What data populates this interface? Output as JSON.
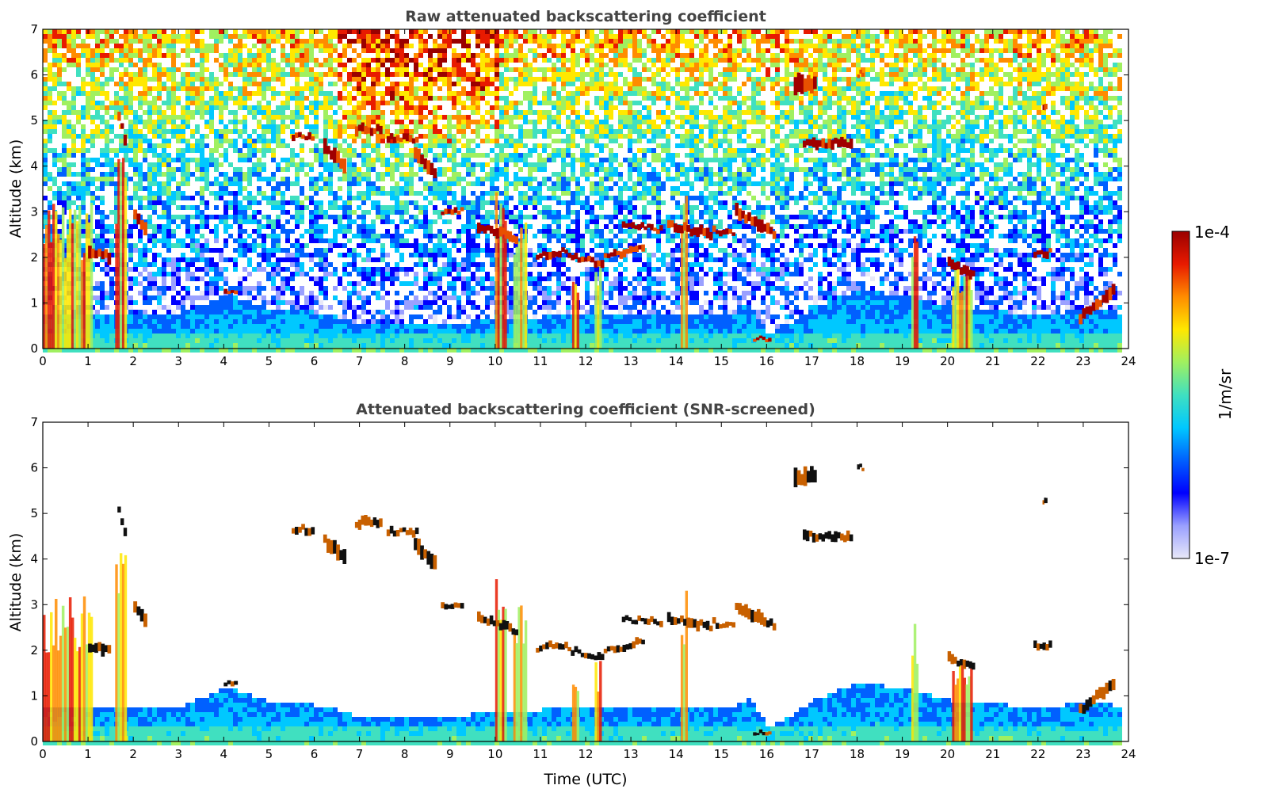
{
  "chart_data": [
    {
      "type": "heatmap",
      "title": "Raw attenuated backscattering coefficient",
      "xlabel": "",
      "ylabel": "Altitude (km)",
      "xlim": [
        0,
        24
      ],
      "ylim": [
        0,
        7
      ],
      "xticks": [
        "0",
        "1",
        "2",
        "3",
        "4",
        "5",
        "6",
        "7",
        "8",
        "9",
        "10",
        "11",
        "12",
        "13",
        "14",
        "15",
        "16",
        "17",
        "18",
        "19",
        "20",
        "21",
        "22",
        "23",
        "24"
      ],
      "yticks": [
        "0",
        "1",
        "2",
        "3",
        "4",
        "5",
        "6",
        "7"
      ],
      "screened": false,
      "data_end_hour": 23.85,
      "boundary_layer": [
        [
          0,
          0.8
        ],
        [
          2,
          0.8
        ],
        [
          3,
          0.8
        ],
        [
          4,
          1.25
        ],
        [
          5,
          0.9
        ],
        [
          6,
          0.85
        ],
        [
          7,
          0.6
        ],
        [
          9,
          0.6
        ],
        [
          10,
          0.7
        ],
        [
          11,
          0.75
        ],
        [
          13,
          0.8
        ],
        [
          15,
          0.75
        ],
        [
          15.6,
          1.0
        ],
        [
          16,
          0.35
        ],
        [
          16.3,
          0.5
        ],
        [
          17,
          0.95
        ],
        [
          18,
          1.35
        ],
        [
          19,
          1.2
        ],
        [
          20,
          0.95
        ],
        [
          21,
          0.9
        ],
        [
          22,
          0.75
        ],
        [
          23,
          0.95
        ],
        [
          23.85,
          0.8
        ]
      ],
      "cloud_layers": [
        {
          "x": [
            1.0,
            1.5
          ],
          "y": [
            2.1,
            2.0
          ],
          "thickness": 0.25
        },
        {
          "x": [
            1.65,
            1.85
          ],
          "y": [
            5.1,
            4.3
          ],
          "thickness": 0.2
        },
        {
          "x": [
            2.0,
            2.3
          ],
          "y": [
            2.9,
            2.6
          ],
          "thickness": 0.3
        },
        {
          "x": [
            4.0,
            4.3
          ],
          "y": [
            1.25,
            1.25
          ],
          "thickness": 0.1
        },
        {
          "x": [
            5.5,
            6.0
          ],
          "y": [
            4.65,
            4.65
          ],
          "thickness": 0.15
        },
        {
          "x": [
            6.2,
            6.7
          ],
          "y": [
            4.4,
            4.0
          ],
          "thickness": 0.3
        },
        {
          "x": [
            6.9,
            7.5
          ],
          "y": [
            4.8,
            4.8
          ],
          "thickness": 0.2
        },
        {
          "x": [
            7.6,
            8.3
          ],
          "y": [
            4.6,
            4.6
          ],
          "thickness": 0.15
        },
        {
          "x": [
            8.2,
            8.7
          ],
          "y": [
            4.3,
            3.8
          ],
          "thickness": 0.3
        },
        {
          "x": [
            8.8,
            9.3
          ],
          "y": [
            3.0,
            3.0
          ],
          "thickness": 0.12
        },
        {
          "x": [
            9.6,
            10.5
          ],
          "y": [
            2.7,
            2.4
          ],
          "thickness": 0.2
        },
        {
          "x": [
            10.9,
            11.6
          ],
          "y": [
            2.05,
            2.15
          ],
          "thickness": 0.15
        },
        {
          "x": [
            11.6,
            12.4
          ],
          "y": [
            2.0,
            1.85
          ],
          "thickness": 0.15
        },
        {
          "x": [
            12.4,
            13.3
          ],
          "y": [
            2.0,
            2.2
          ],
          "thickness": 0.15
        },
        {
          "x": [
            12.8,
            13.7
          ],
          "y": [
            2.7,
            2.6
          ],
          "thickness": 0.12
        },
        {
          "x": [
            13.8,
            14.8
          ],
          "y": [
            2.7,
            2.5
          ],
          "thickness": 0.2
        },
        {
          "x": [
            14.8,
            15.3
          ],
          "y": [
            2.6,
            2.5
          ],
          "thickness": 0.12
        },
        {
          "x": [
            15.3,
            16.2
          ],
          "y": [
            3.0,
            2.5
          ],
          "thickness": 0.25
        },
        {
          "x": [
            15.7,
            16.1
          ],
          "y": [
            0.2,
            0.2
          ],
          "thickness": 0.08
        },
        {
          "x": [
            16.8,
            17.9
          ],
          "y": [
            4.5,
            4.5
          ],
          "thickness": 0.2
        },
        {
          "x": [
            18.0,
            18.15
          ],
          "y": [
            6.02,
            6.02
          ],
          "thickness": 0.1
        },
        {
          "x": [
            16.6,
            17.1
          ],
          "y": [
            5.8,
            5.8
          ],
          "thickness": 0.4
        },
        {
          "x": [
            20.0,
            20.6
          ],
          "y": [
            1.85,
            1.6
          ],
          "thickness": 0.2
        },
        {
          "x": [
            21.9,
            22.3
          ],
          "y": [
            2.1,
            2.1
          ],
          "thickness": 0.15
        },
        {
          "x": [
            22.1,
            22.2
          ],
          "y": [
            5.3,
            5.3
          ],
          "thickness": 0.15
        },
        {
          "x": [
            22.9,
            23.7
          ],
          "y": [
            0.7,
            1.3
          ],
          "thickness": 0.25
        }
      ],
      "precip_shafts": [
        {
          "x": [
            0.0,
            1.1
          ],
          "top": 3.2
        },
        {
          "x": [
            1.6,
            1.85
          ],
          "top": 4.2
        },
        {
          "x": [
            10.0,
            10.25
          ],
          "top": 3.6
        },
        {
          "x": [
            10.4,
            10.7
          ],
          "top": 3.0
        },
        {
          "x": [
            11.7,
            11.85
          ],
          "top": 1.6
        },
        {
          "x": [
            12.2,
            12.35
          ],
          "top": 1.8
        },
        {
          "x": [
            14.1,
            14.25
          ],
          "top": 3.4
        },
        {
          "x": [
            19.2,
            19.35
          ],
          "top": 2.6
        },
        {
          "x": [
            20.1,
            20.55
          ],
          "top": 1.9
        }
      ]
    },
    {
      "type": "heatmap",
      "title": "Attenuated backscattering coefficient (SNR-screened)",
      "xlabel": "Time (UTC)",
      "ylabel": "Altitude (km)",
      "xlim": [
        0,
        24
      ],
      "ylim": [
        0,
        7
      ],
      "xticks": [
        "0",
        "1",
        "2",
        "3",
        "4",
        "5",
        "6",
        "7",
        "8",
        "9",
        "10",
        "11",
        "12",
        "13",
        "14",
        "15",
        "16",
        "17",
        "18",
        "19",
        "20",
        "21",
        "22",
        "23",
        "24"
      ],
      "yticks": [
        "0",
        "1",
        "2",
        "3",
        "4",
        "5",
        "6",
        "7"
      ],
      "screened": true,
      "data_end_hour": 23.85
    }
  ],
  "colorbar": {
    "label": "1/m/sr",
    "max_label": "1e-4",
    "min_label": "1e-7",
    "scale": "log",
    "colors": [
      "#e8e8f8",
      "#9aa0ff",
      "#0000ff",
      "#0060ff",
      "#00c8ff",
      "#40e0c0",
      "#a0f060",
      "#ffe800",
      "#ff8c00",
      "#e81a00",
      "#9a0000"
    ]
  }
}
